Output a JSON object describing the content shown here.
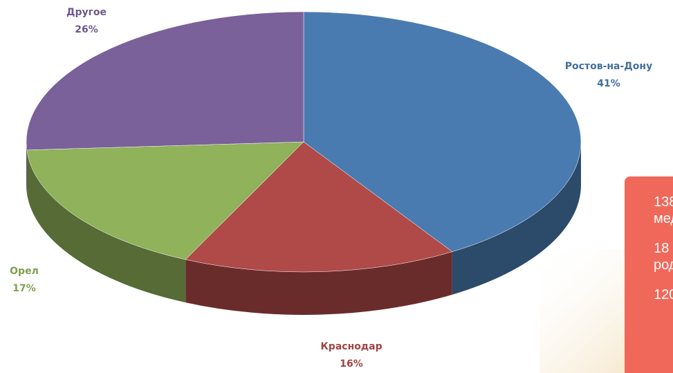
{
  "chart_data": {
    "type": "pie3d",
    "categories": [
      "Ростов-на-Дону",
      "Краснодар",
      "Орел",
      "Другое"
    ],
    "values": [
      41,
      16,
      17,
      26
    ],
    "value_labels": [
      "41%",
      "16%",
      "17%",
      "26%"
    ],
    "colors": [
      "#4a7bb0",
      "#b04a48",
      "#8fb25a",
      "#7a619a"
    ]
  },
  "side_box": {
    "lines": [
      "138",
      "мед",
      "18",
      "род",
      "120"
    ]
  }
}
